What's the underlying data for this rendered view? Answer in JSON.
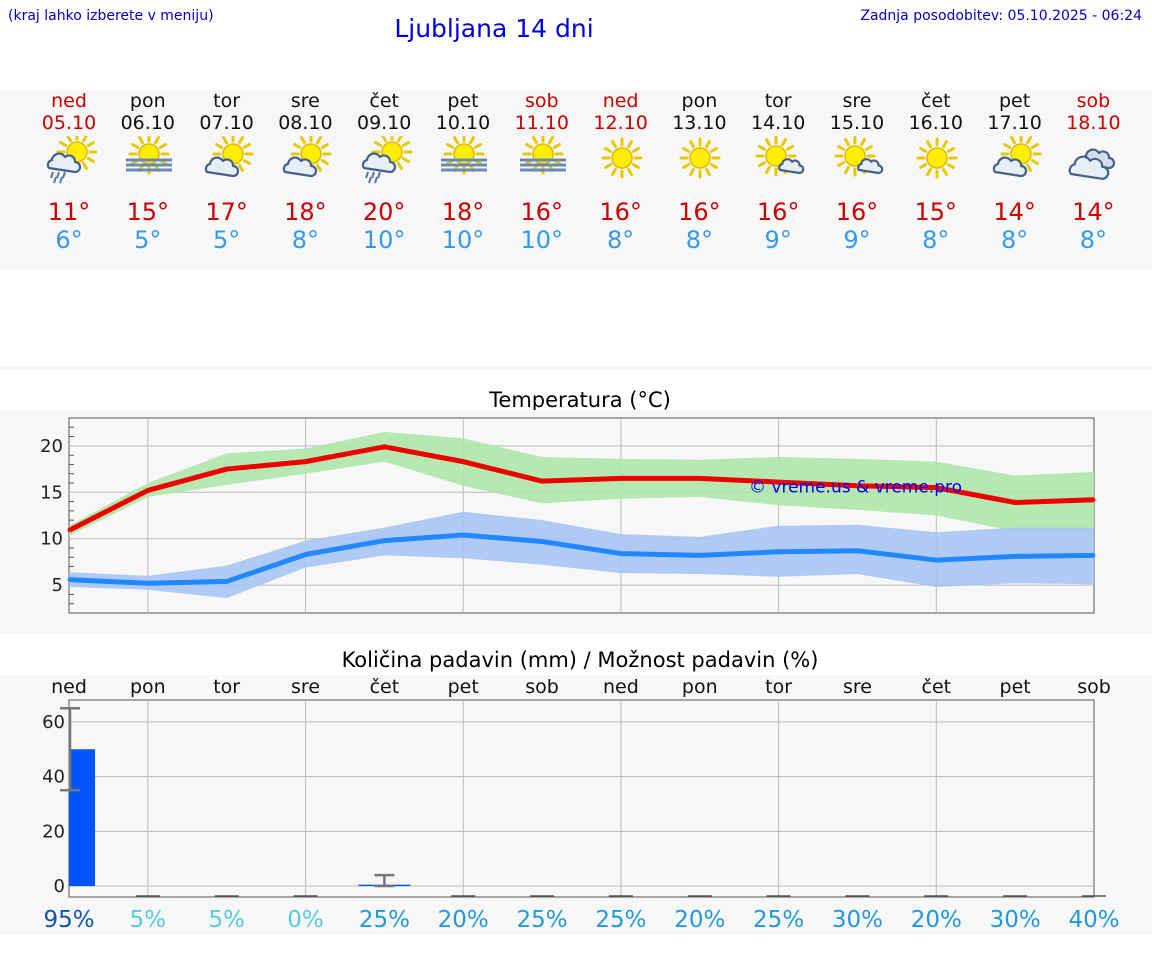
{
  "header": {
    "left_note": "(kraj lahko izberete v meniju)",
    "title": "Ljubljana 14 dni",
    "updated": "Zadnja posodobitev: 05.10.2025 - 06:24"
  },
  "colors": {
    "max": "#cc0000",
    "min": "#3399ee",
    "weekend": "#cc0000",
    "bar": "#0055ff"
  },
  "days": [
    {
      "name": "ned",
      "date": "05.10",
      "weekend": true,
      "icon": "sun-cloud-rain-icon",
      "max": "11°",
      "min": "6°"
    },
    {
      "name": "pon",
      "date": "06.10",
      "weekend": false,
      "icon": "sun-fog-icon",
      "max": "15°",
      "min": "5°"
    },
    {
      "name": "tor",
      "date": "07.10",
      "weekend": false,
      "icon": "sun-cloud-icon",
      "max": "17°",
      "min": "5°"
    },
    {
      "name": "sre",
      "date": "08.10",
      "weekend": false,
      "icon": "sun-cloud-icon",
      "max": "18°",
      "min": "8°"
    },
    {
      "name": "čet",
      "date": "09.10",
      "weekend": false,
      "icon": "sun-cloud-rain-icon",
      "max": "20°",
      "min": "10°"
    },
    {
      "name": "pet",
      "date": "10.10",
      "weekend": false,
      "icon": "sun-fog-icon",
      "max": "18°",
      "min": "10°"
    },
    {
      "name": "sob",
      "date": "11.10",
      "weekend": true,
      "icon": "sun-fog-icon",
      "max": "16°",
      "min": "10°"
    },
    {
      "name": "ned",
      "date": "12.10",
      "weekend": true,
      "icon": "sun-icon",
      "max": "16°",
      "min": "8°"
    },
    {
      "name": "pon",
      "date": "13.10",
      "weekend": false,
      "icon": "sun-icon",
      "max": "16°",
      "min": "8°"
    },
    {
      "name": "tor",
      "date": "14.10",
      "weekend": false,
      "icon": "sun-small-cloud-icon",
      "max": "16°",
      "min": "9°"
    },
    {
      "name": "sre",
      "date": "15.10",
      "weekend": false,
      "icon": "sun-small-cloud-icon",
      "max": "16°",
      "min": "9°"
    },
    {
      "name": "čet",
      "date": "16.10",
      "weekend": false,
      "icon": "sun-icon",
      "max": "15°",
      "min": "8°"
    },
    {
      "name": "pet",
      "date": "17.10",
      "weekend": false,
      "icon": "sun-cloud-icon",
      "max": "14°",
      "min": "8°"
    },
    {
      "name": "sob",
      "date": "18.10",
      "weekend": true,
      "icon": "cloudy-icon",
      "max": "14°",
      "min": "8°"
    }
  ],
  "chart_data": [
    {
      "type": "line",
      "title": "Temperatura (°C)",
      "x": [
        "ned",
        "pon",
        "tor",
        "sre",
        "čet",
        "pet",
        "sob",
        "ned",
        "pon",
        "tor",
        "sre",
        "čet",
        "pet",
        "sob"
      ],
      "ylim": [
        2,
        23
      ],
      "yticks": [
        5,
        10,
        15,
        20
      ],
      "grid": true,
      "watermark": "© vreme.us & vreme.pro",
      "series": [
        {
          "key": "max",
          "color": "#ee0000",
          "values": [
            10.9,
            15.2,
            17.5,
            18.3,
            19.9,
            18.3,
            16.2,
            16.5,
            16.5,
            16.1,
            15.7,
            15.5,
            13.9,
            14.2
          ],
          "band_low": [
            10.3,
            14.5,
            15.8,
            17.0,
            18.3,
            15.7,
            13.8,
            14.3,
            14.5,
            13.6,
            13.1,
            12.5,
            10.8,
            10.8
          ],
          "band_high": [
            11.4,
            16.0,
            19.2,
            19.7,
            21.5,
            20.8,
            18.8,
            18.6,
            18.5,
            18.8,
            18.6,
            18.3,
            16.8,
            17.2
          ],
          "band_color": "#aee6a8"
        },
        {
          "key": "min",
          "color": "#2288ff",
          "values": [
            5.6,
            5.2,
            5.4,
            8.3,
            9.8,
            10.4,
            9.7,
            8.4,
            8.2,
            8.6,
            8.7,
            7.7,
            8.1,
            8.2
          ],
          "band_low": [
            4.8,
            4.5,
            3.6,
            6.9,
            8.2,
            7.9,
            7.2,
            6.3,
            6.2,
            5.9,
            6.2,
            4.8,
            5.2,
            5.1
          ],
          "band_high": [
            6.4,
            6.0,
            7.1,
            9.8,
            11.2,
            12.9,
            12.0,
            10.5,
            10.2,
            11.4,
            11.5,
            10.7,
            11.2,
            11.2
          ],
          "band_color": "#a7c4f5"
        }
      ]
    },
    {
      "type": "bar",
      "title": "Količina padavin (mm) / Možnost padavin (%)",
      "categories": [
        "ned",
        "pon",
        "tor",
        "sre",
        "čet",
        "pet",
        "sob",
        "ned",
        "pon",
        "tor",
        "sre",
        "čet",
        "pet",
        "sob"
      ],
      "ylim": [
        -4,
        68
      ],
      "yticks": [
        0,
        20,
        40,
        60
      ],
      "grid": true,
      "values": [
        50,
        0,
        0,
        0,
        0.5,
        0,
        0,
        0,
        0,
        0,
        0,
        0,
        0,
        0
      ],
      "error_low": [
        35,
        null,
        null,
        null,
        0,
        null,
        null,
        null,
        null,
        null,
        null,
        null,
        null,
        null
      ],
      "error_high": [
        65,
        null,
        null,
        null,
        4,
        null,
        null,
        null,
        null,
        null,
        null,
        null,
        null,
        null
      ],
      "probability": [
        "95%",
        "5%",
        "5%",
        "0%",
        "25%",
        "20%",
        "25%",
        "25%",
        "20%",
        "25%",
        "30%",
        "20%",
        "30%",
        "40%"
      ],
      "probability_colors": [
        "#1155aa",
        "#55ccdd",
        "#55ccdd",
        "#55ccdd",
        "#2299dd",
        "#2299dd",
        "#2299dd",
        "#2299dd",
        "#2299dd",
        "#2299dd",
        "#2299dd",
        "#2299dd",
        "#2299dd",
        "#2299dd"
      ]
    }
  ]
}
